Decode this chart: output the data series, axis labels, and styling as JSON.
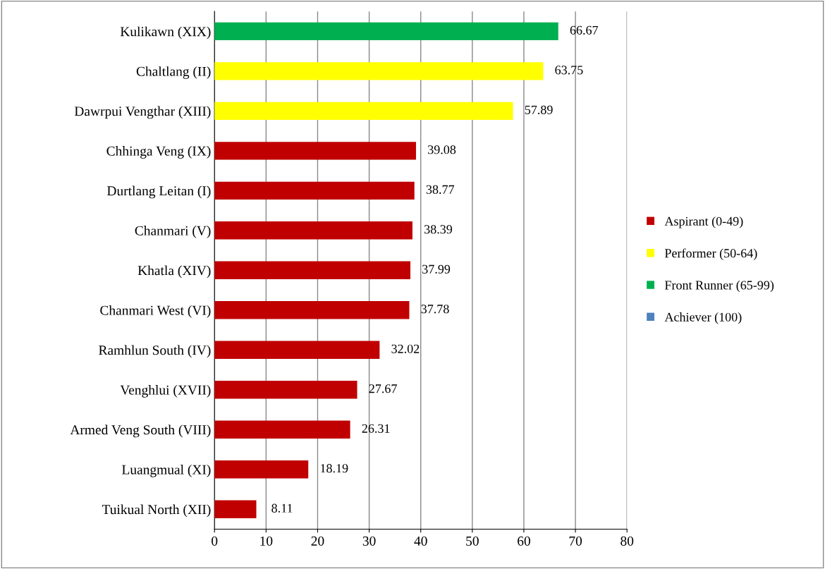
{
  "chart_data": {
    "type": "bar",
    "orientation": "horizontal",
    "categories": [
      "Kulikawn (XIX)",
      "Chaltlang (II)",
      "Dawrpui Vengthar (XIII)",
      "Chhinga Veng (IX)",
      "Durtlang Leitan (I)",
      "Chanmari (V)",
      "Khatla (XIV)",
      "Chanmari West (VI)",
      "Ramhlun South (IV)",
      "Venghlui (XVII)",
      "Armed Veng South (VIII)",
      "Luangmual (XI)",
      "Tuikual North (XII)"
    ],
    "series": [
      {
        "name": "Aspirant (0-49)",
        "color": "#c00000",
        "values": [
          null,
          null,
          null,
          39.08,
          38.77,
          38.39,
          37.99,
          37.78,
          32.02,
          27.67,
          26.31,
          18.19,
          8.11
        ]
      },
      {
        "name": "Performer (50-64)",
        "color": "#ffff00",
        "values": [
          null,
          63.75,
          57.89,
          null,
          null,
          null,
          null,
          null,
          null,
          null,
          null,
          null,
          null
        ]
      },
      {
        "name": "Front Runner (65-99)",
        "color": "#00b050",
        "values": [
          66.67,
          null,
          null,
          null,
          null,
          null,
          null,
          null,
          null,
          null,
          null,
          null,
          null
        ]
      },
      {
        "name": "Achiever (100)",
        "color": "#4f81bd",
        "values": [
          null,
          null,
          null,
          null,
          null,
          null,
          null,
          null,
          null,
          null,
          null,
          null,
          null
        ]
      }
    ],
    "xlim": [
      0,
      80
    ],
    "xticks": [
      0,
      10,
      20,
      30,
      40,
      50,
      60,
      70,
      80
    ],
    "grid": "x",
    "legend": "right",
    "data_labels": true
  }
}
